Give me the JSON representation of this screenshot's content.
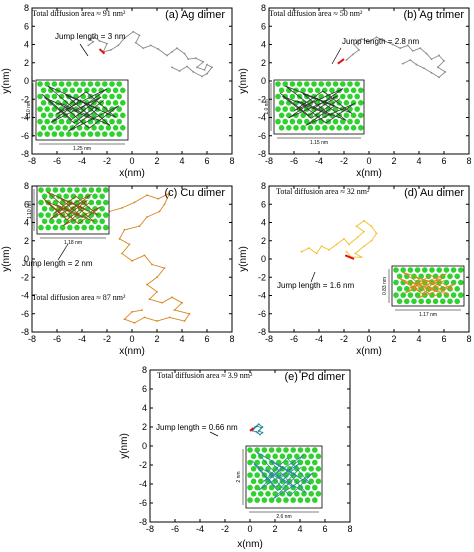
{
  "chart_data": [
    {
      "type": "scatter",
      "title": "(a) Ag dimer",
      "xlabel": "x(nm)",
      "ylabel": "y(nm)",
      "xlim": [
        -8,
        8
      ],
      "ylim": [
        -8,
        8
      ],
      "xticks": [
        -8,
        -6,
        -4,
        -2,
        0,
        2,
        4,
        6,
        8
      ],
      "yticks": [
        -8,
        -6,
        -4,
        -2,
        0,
        2,
        4,
        6,
        8
      ],
      "annotations": {
        "area": "Total diffusion area ≈ 91 nm²",
        "jump": "Jump length = 3 nm",
        "inset_width": "1.25 nm",
        "inset_height": "1.10 nm"
      },
      "trajectory_color": "#8a8a8a",
      "trajectory": [
        [
          -3.5,
          3.9
        ],
        [
          -3.1,
          4.3
        ],
        [
          -3.4,
          4.6
        ],
        [
          -3.0,
          4.8
        ],
        [
          -2.6,
          4.4
        ],
        [
          -2.0,
          4.1
        ],
        [
          -2.3,
          3.2
        ],
        [
          -1.7,
          3.4
        ],
        [
          -1.1,
          3.9
        ],
        [
          -0.6,
          4.7
        ],
        [
          0.1,
          5.4
        ],
        [
          0.6,
          5.0
        ],
        [
          0.3,
          4.2
        ],
        [
          0.9,
          3.6
        ],
        [
          1.5,
          3.9
        ],
        [
          2.1,
          3.5
        ],
        [
          2.8,
          2.8
        ],
        [
          3.2,
          3.2
        ],
        [
          3.6,
          3.6
        ],
        [
          4.2,
          3.0
        ],
        [
          4.5,
          2.4
        ],
        [
          5.1,
          2.5
        ],
        [
          5.7,
          2.1
        ],
        [
          5.2,
          1.5
        ],
        [
          5.8,
          1.2
        ],
        [
          6.0,
          1.8
        ],
        [
          6.4,
          1.5
        ],
        [
          6.0,
          0.8
        ],
        [
          5.6,
          0.5
        ],
        [
          4.9,
          1.0
        ],
        [
          4.4,
          1.6
        ],
        [
          3.8,
          1.1
        ],
        [
          3.2,
          1.5
        ]
      ],
      "jump_segment": [
        [
          -2.6,
          3.5
        ],
        [
          -2.2,
          3.0
        ]
      ]
    },
    {
      "type": "scatter",
      "title": "(b) Ag trimer",
      "xlabel": "x(nm)",
      "ylabel": "y(nm)",
      "xlim": [
        -8,
        8
      ],
      "ylim": [
        -8,
        8
      ],
      "xticks": [
        -8,
        -6,
        -4,
        -2,
        0,
        2,
        4,
        6,
        8
      ],
      "yticks": [
        -8,
        -6,
        -4,
        -2,
        0,
        2,
        4,
        6,
        8
      ],
      "annotations": {
        "area": "Total diffusion area ≈ 50 nm²",
        "jump": "Jump length = 2.8 nm",
        "inset_width": "1.15 nm",
        "inset_height": "1.0 nm"
      },
      "trajectory_color": "#8a8a8a",
      "trajectory": [
        [
          -1.8,
          2.3
        ],
        [
          -1.3,
          2.9
        ],
        [
          -0.8,
          3.4
        ],
        [
          -1.2,
          4.0
        ],
        [
          -0.6,
          4.6
        ],
        [
          0.0,
          4.3
        ],
        [
          0.6,
          4.8
        ],
        [
          1.2,
          4.4
        ],
        [
          1.9,
          4.0
        ],
        [
          2.5,
          3.6
        ],
        [
          3.1,
          3.9
        ],
        [
          3.5,
          3.3
        ],
        [
          4.1,
          3.6
        ],
        [
          4.6,
          3.0
        ],
        [
          5.0,
          2.4
        ],
        [
          5.6,
          2.8
        ],
        [
          6.0,
          2.2
        ],
        [
          5.5,
          1.5
        ],
        [
          6.1,
          1.0
        ],
        [
          5.6,
          0.4
        ],
        [
          5.0,
          0.9
        ],
        [
          4.4,
          1.4
        ],
        [
          3.8,
          1.8
        ],
        [
          3.3,
          2.3
        ],
        [
          2.7,
          1.9
        ]
      ],
      "jump_segment": [
        [
          -2.5,
          1.9
        ],
        [
          -2.0,
          2.4
        ]
      ]
    },
    {
      "type": "scatter",
      "title": "(c) Cu dimer",
      "xlabel": "x(nm)",
      "ylabel": "y(nm)",
      "xlim": [
        -8,
        8
      ],
      "ylim": [
        -8,
        8
      ],
      "xticks": [
        -8,
        -6,
        -4,
        -2,
        0,
        2,
        4,
        6,
        8
      ],
      "yticks": [
        -8,
        -6,
        -4,
        -2,
        0,
        2,
        4,
        6,
        8
      ],
      "annotations": {
        "area": "Total diffusion area ≈ 87 nm²",
        "jump": "Jump length = 2 nm",
        "inset_width": "1.18 nm",
        "inset_height": "1.10 nm"
      },
      "trajectory_color": "#d9861e",
      "trajectory": [
        [
          -2.6,
          4.6
        ],
        [
          -1.8,
          5.2
        ],
        [
          -0.8,
          5.6
        ],
        [
          0.2,
          6.2
        ],
        [
          1.2,
          7.0
        ],
        [
          2.1,
          6.6
        ],
        [
          3.0,
          7.2
        ],
        [
          2.6,
          6.0
        ],
        [
          2.2,
          5.2
        ],
        [
          1.2,
          4.6
        ],
        [
          0.6,
          3.6
        ],
        [
          -0.6,
          3.2
        ],
        [
          -1.0,
          2.2
        ],
        [
          -0.2,
          1.6
        ],
        [
          -0.8,
          0.6
        ],
        [
          0.0,
          -0.2
        ],
        [
          1.0,
          0.4
        ],
        [
          1.6,
          -0.6
        ],
        [
          2.6,
          -1.0
        ],
        [
          2.0,
          -2.0
        ],
        [
          1.2,
          -2.8
        ],
        [
          2.0,
          -3.6
        ],
        [
          1.4,
          -4.4
        ],
        [
          2.4,
          -4.8
        ],
        [
          3.2,
          -4.2
        ],
        [
          4.0,
          -4.8
        ],
        [
          3.4,
          -5.6
        ],
        [
          4.6,
          -6.0
        ],
        [
          4.2,
          -6.8
        ],
        [
          3.0,
          -6.4
        ],
        [
          2.0,
          -6.8
        ],
        [
          1.0,
          -6.4
        ],
        [
          0.2,
          -7.0
        ],
        [
          -0.6,
          -6.6
        ],
        [
          0.0,
          -5.8
        ],
        [
          0.8,
          -5.6
        ]
      ],
      "jump_segment": [
        [
          -2.6,
          4.6
        ],
        [
          -2.0,
          3.4
        ]
      ]
    },
    {
      "type": "scatter",
      "title": "(d) Au dimer",
      "xlabel": "x(nm)",
      "ylabel": "y(nm)",
      "xlim": [
        -8,
        8
      ],
      "ylim": [
        -8,
        8
      ],
      "xticks": [
        -8,
        -6,
        -4,
        -2,
        0,
        2,
        4,
        6,
        8
      ],
      "yticks": [
        -8,
        -6,
        -4,
        -2,
        0,
        2,
        4,
        6,
        8
      ],
      "annotations": {
        "area": "Total diffusion area ≈ 32 nm²",
        "jump": "Jump length = 1.6 nm",
        "inset_width": "1.17 nm",
        "inset_height": "0.83 nm"
      },
      "trajectory_color": "#f0bf2a",
      "trajectory": [
        [
          -5.4,
          0.8
        ],
        [
          -4.8,
          1.2
        ],
        [
          -4.2,
          0.6
        ],
        [
          -3.8,
          1.4
        ],
        [
          -3.2,
          1.0
        ],
        [
          -2.6,
          1.6
        ],
        [
          -2.0,
          2.2
        ],
        [
          -1.6,
          1.6
        ],
        [
          -0.9,
          2.4
        ],
        [
          -0.4,
          3.0
        ],
        [
          -1.0,
          3.6
        ],
        [
          -0.4,
          4.2
        ],
        [
          0.2,
          3.6
        ],
        [
          0.6,
          2.8
        ],
        [
          0.2,
          2.0
        ],
        [
          -0.4,
          1.4
        ],
        [
          -1.1,
          0.6
        ],
        [
          -0.6,
          0.2
        ],
        [
          -1.4,
          0.2
        ],
        [
          -1.8,
          0.8
        ]
      ],
      "jump_segment": [
        [
          -1.9,
          0.4
        ],
        [
          -1.2,
          0.0
        ]
      ]
    },
    {
      "type": "scatter",
      "title": "(e) Pd dimer",
      "xlabel": "x(nm)",
      "ylabel": "y(nm)",
      "xlim": [
        -8,
        8
      ],
      "ylim": [
        -8,
        8
      ],
      "xticks": [
        -8,
        -6,
        -4,
        -2,
        0,
        2,
        4,
        6,
        8
      ],
      "yticks": [
        -8,
        -6,
        -4,
        -2,
        0,
        2,
        4,
        6,
        8
      ],
      "annotations": {
        "area": "Total diffusion area ≈ 3.9 nm²",
        "jump": "Jump length = 0.66 nm",
        "inset_width": "2.6 nm",
        "inset_height": "2 nm"
      },
      "trajectory_color": "#2a8a9a",
      "trajectory": [
        [
          0.3,
          1.8
        ],
        [
          0.6,
          2.1
        ],
        [
          0.9,
          1.9
        ],
        [
          0.7,
          1.6
        ],
        [
          1.0,
          1.4
        ],
        [
          0.8,
          1.2
        ],
        [
          0.5,
          1.5
        ],
        [
          0.2,
          1.6
        ],
        [
          0.4,
          2.0
        ],
        [
          0.7,
          2.3
        ],
        [
          1.0,
          2.0
        ],
        [
          0.6,
          1.4
        ]
      ],
      "jump_segment": [
        [
          0.0,
          1.6
        ],
        [
          0.3,
          1.9
        ]
      ]
    }
  ]
}
